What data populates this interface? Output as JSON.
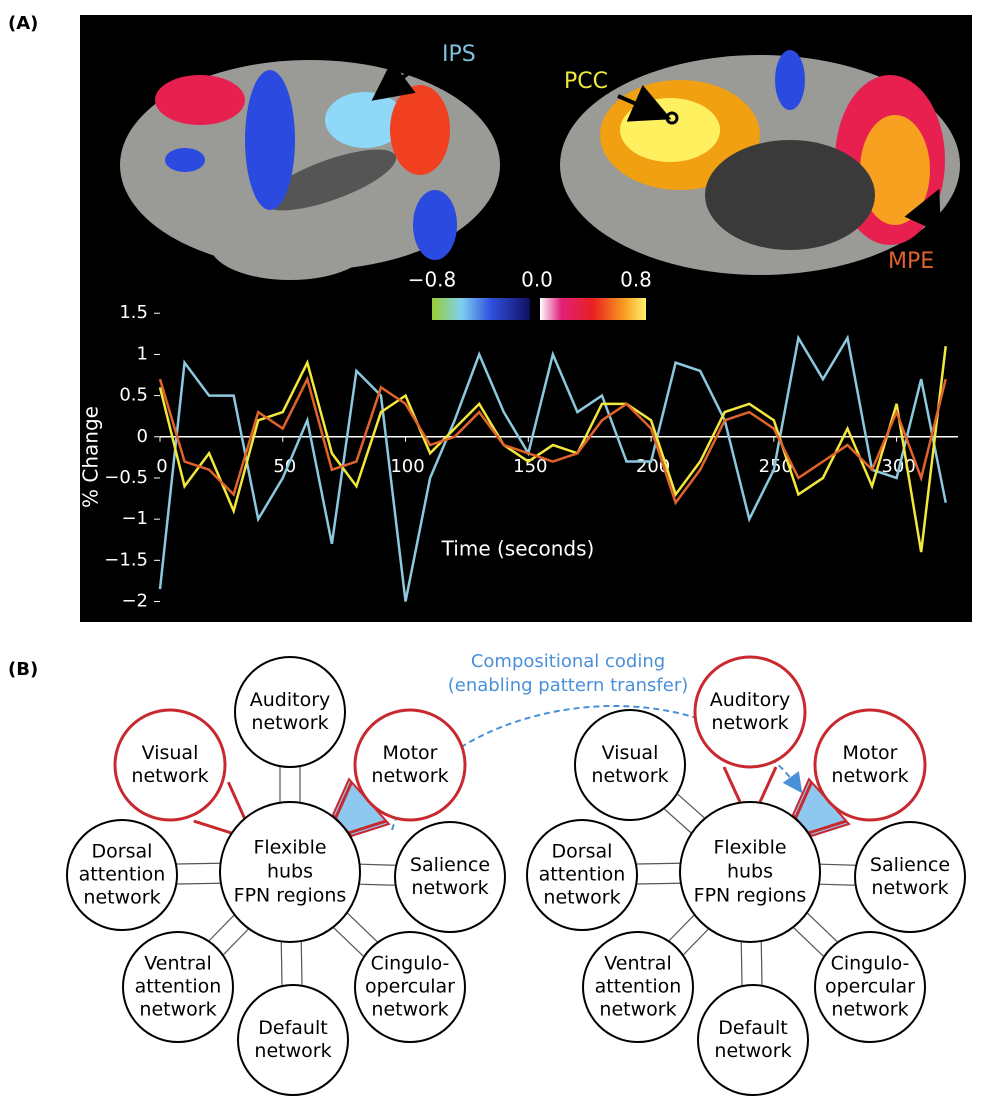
{
  "panel_a": {
    "label": "(A)",
    "brain_labels": [
      "IPS",
      "PCC",
      "MPE"
    ],
    "colorbar_labels": [
      "−0.8",
      "0.0",
      "0.8"
    ]
  },
  "chart_data": {
    "type": "line",
    "x_label": "Time (seconds)",
    "y_label": "% Change",
    "x": [
      0,
      10,
      20,
      30,
      40,
      50,
      60,
      70,
      80,
      90,
      100,
      110,
      120,
      130,
      140,
      150,
      160,
      170,
      180,
      190,
      200,
      210,
      220,
      230,
      240,
      250,
      260,
      270,
      280,
      290,
      300,
      310,
      320
    ],
    "series": [
      {
        "color": "#8cc8de",
        "values": [
          -1.85,
          0.9,
          0.5,
          0.5,
          -1.0,
          -0.5,
          0.2,
          -1.3,
          0.8,
          0.5,
          -2.0,
          -0.5,
          0.2,
          1.0,
          0.3,
          -0.2,
          1.0,
          0.3,
          0.5,
          -0.3,
          -0.3,
          0.9,
          0.8,
          0.2,
          -1.0,
          -0.4,
          1.2,
          0.7,
          1.2,
          -0.4,
          -0.5,
          0.7,
          -0.8
        ]
      },
      {
        "color": "#f2e83c",
        "values": [
          0.6,
          -0.6,
          -0.2,
          -0.9,
          0.2,
          0.3,
          0.9,
          -0.2,
          -0.6,
          0.3,
          0.5,
          -0.2,
          0.1,
          0.4,
          -0.1,
          -0.3,
          -0.1,
          -0.2,
          0.4,
          0.4,
          0.2,
          -0.7,
          -0.3,
          0.3,
          0.4,
          0.2,
          -0.7,
          -0.5,
          0.1,
          -0.6,
          0.4,
          -1.4,
          1.1
        ]
      },
      {
        "color": "#e0622c",
        "values": [
          0.7,
          -0.3,
          -0.4,
          -0.7,
          0.3,
          0.1,
          0.7,
          -0.4,
          -0.3,
          0.6,
          0.4,
          -0.1,
          0.0,
          0.3,
          -0.1,
          -0.2,
          -0.3,
          -0.2,
          0.2,
          0.4,
          0.1,
          -0.8,
          -0.4,
          0.2,
          0.3,
          0.1,
          -0.5,
          -0.3,
          -0.1,
          -0.4,
          0.3,
          -0.5,
          0.7
        ]
      }
    ],
    "xlim": [
      0,
      325
    ],
    "ylim": [
      -2.2,
      1.6
    ],
    "xticks": [
      0,
      50,
      100,
      150,
      200,
      250,
      300
    ],
    "yticks": [
      {
        "value": -2,
        "label": "−2"
      },
      {
        "value": -1.5,
        "label": "−1.5"
      },
      {
        "value": -1,
        "label": "−1"
      },
      {
        "value": -0.5,
        "label": "−0.5"
      },
      0,
      0.5,
      1,
      1.5
    ]
  },
  "panel_b": {
    "label": "(B)",
    "annotation": [
      "Compositional coding",
      "(enabling pattern transfer)"
    ],
    "diagrams": [
      {
        "hub": [
          "Flexible",
          "hubs",
          "FPN regions"
        ],
        "nodes": [
          {
            "label": [
              "Auditory",
              "network"
            ],
            "border": "#000000"
          },
          {
            "label": [
              "Visual",
              "network"
            ],
            "border": "#c8282e"
          },
          {
            "label": [
              "Motor",
              "network"
            ],
            "border": "#c8282e",
            "wedge": "#8ec8ef"
          },
          {
            "label": [
              "Dorsal",
              "attention",
              "network"
            ],
            "border": "#000000"
          },
          {
            "label": [
              "Salience",
              "network"
            ],
            "border": "#000000"
          },
          {
            "label": [
              "Ventral",
              "attention",
              "network"
            ],
            "border": "#000000"
          },
          {
            "label": [
              "Cingulo-",
              "opercular",
              "network"
            ],
            "border": "#000000"
          },
          {
            "label": [
              "Default",
              "network"
            ],
            "border": "#000000"
          }
        ]
      },
      {
        "hub": [
          "Flexible",
          "hubs",
          "FPN regions"
        ],
        "nodes": [
          {
            "label": [
              "Auditory",
              "network"
            ],
            "border": "#c8282e"
          },
          {
            "label": [
              "Visual",
              "network"
            ],
            "border": "#000000"
          },
          {
            "label": [
              "Motor",
              "network"
            ],
            "border": "#c8282e",
            "wedge": "#8ec8ef"
          },
          {
            "label": [
              "Dorsal",
              "attention",
              "network"
            ],
            "border": "#000000"
          },
          {
            "label": [
              "Salience",
              "network"
            ],
            "border": "#000000"
          },
          {
            "label": [
              "Ventral",
              "attention",
              "network"
            ],
            "border": "#000000"
          },
          {
            "label": [
              "Cingulo-",
              "opercular",
              "network"
            ],
            "border": "#000000"
          },
          {
            "label": [
              "Default",
              "network"
            ],
            "border": "#000000"
          }
        ]
      }
    ]
  }
}
